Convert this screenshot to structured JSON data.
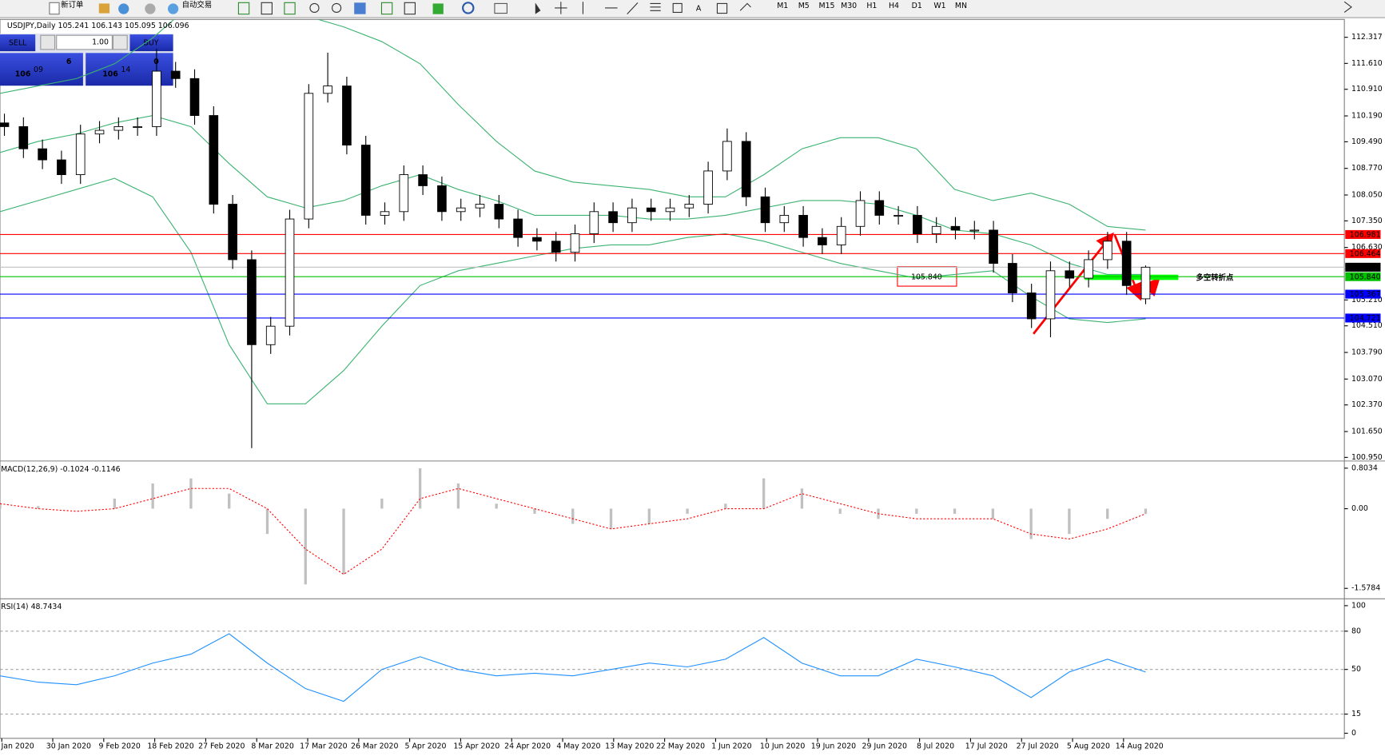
{
  "toolbar": {
    "new_order": "新订单",
    "auto_trading": "自动交易",
    "timeframes": [
      "M1",
      "M5",
      "M15",
      "M30",
      "H1",
      "H4",
      "D1",
      "W1",
      "MN"
    ]
  },
  "trade_panel": {
    "sell": "SELL",
    "buy": "BUY",
    "lots": "1.00",
    "bid": {
      "big": "106",
      "main": "09",
      "small": "6"
    },
    "ask": {
      "big": "106",
      "main": "14",
      "small": "0"
    }
  },
  "chart_data": [
    {
      "type": "candlestick",
      "title": "USDJPY,Daily",
      "header_values": [
        105.241,
        106.143,
        105.095,
        106.096
      ],
      "ylim": [
        100.9,
        112.8
      ],
      "yticks": [
        {
          "value": 112.317,
          "label": "112.317"
        },
        {
          "value": 111.61,
          "label": "111.610"
        },
        {
          "value": 110.91,
          "label": "110.910"
        },
        {
          "value": 110.19,
          "label": "110.190"
        },
        {
          "value": 109.49,
          "label": "109.490"
        },
        {
          "value": 108.77,
          "label": "108.770"
        },
        {
          "value": 108.05,
          "label": "108.050"
        },
        {
          "value": 107.35,
          "label": "107.350"
        },
        {
          "value": 106.63,
          "label": "106.630"
        },
        {
          "value": 105.21,
          "label": "105.210"
        },
        {
          "value": 104.51,
          "label": "104.510"
        },
        {
          "value": 103.79,
          "label": "103.790"
        },
        {
          "value": 103.07,
          "label": "103.070"
        },
        {
          "value": 102.37,
          "label": "102.370"
        },
        {
          "value": 101.65,
          "label": "101.650"
        },
        {
          "value": 100.95,
          "label": "100.950"
        }
      ],
      "price_levels": [
        {
          "value": 106.981,
          "label": "106.981",
          "color": "#ff0000"
        },
        {
          "value": 106.464,
          "label": "106.464",
          "color": "#ff0000"
        },
        {
          "value": 106.096,
          "label": "106.096",
          "color": "#c0c0c0",
          "label_bg": "#000000"
        },
        {
          "value": 105.84,
          "label": "105.840",
          "color": "#00c000"
        },
        {
          "value": 105.367,
          "label": "105.367",
          "color": "#0000ff"
        },
        {
          "value": 104.721,
          "label": "104.721",
          "color": "#0000ff"
        }
      ],
      "candles": [
        [
          110.0,
          110.25,
          109.65,
          109.9
        ],
        [
          109.9,
          110.15,
          109.05,
          109.3
        ],
        [
          109.3,
          109.55,
          108.75,
          109.0
        ],
        [
          109.0,
          109.25,
          108.35,
          108.6
        ],
        [
          108.6,
          109.95,
          108.35,
          109.7
        ],
        [
          109.7,
          110.05,
          109.45,
          109.8
        ],
        [
          109.8,
          110.15,
          109.55,
          109.9
        ],
        [
          109.9,
          110.15,
          109.65,
          109.9
        ],
        [
          109.9,
          112.0,
          109.65,
          111.4
        ],
        [
          111.4,
          111.65,
          110.95,
          111.2
        ],
        [
          111.2,
          111.45,
          109.95,
          110.2
        ],
        [
          110.2,
          110.45,
          107.55,
          107.8
        ],
        [
          107.8,
          108.05,
          106.05,
          106.3
        ],
        [
          106.3,
          106.55,
          101.2,
          104.0
        ],
        [
          104.0,
          104.75,
          103.75,
          104.5
        ],
        [
          104.5,
          107.65,
          104.25,
          107.4
        ],
        [
          107.4,
          111.05,
          107.15,
          110.8
        ],
        [
          110.8,
          111.9,
          110.55,
          111.0
        ],
        [
          111.0,
          111.25,
          109.15,
          109.4
        ],
        [
          109.4,
          109.65,
          107.25,
          107.5
        ],
        [
          107.5,
          107.85,
          107.25,
          107.6
        ],
        [
          107.6,
          108.85,
          107.35,
          108.6
        ],
        [
          108.6,
          108.85,
          108.05,
          108.3
        ],
        [
          108.3,
          108.55,
          107.35,
          107.6
        ],
        [
          107.6,
          107.95,
          107.35,
          107.7
        ],
        [
          107.7,
          108.05,
          107.45,
          107.8
        ],
        [
          107.8,
          108.05,
          107.15,
          107.4
        ],
        [
          107.4,
          107.65,
          106.65,
          106.9
        ],
        [
          106.9,
          107.15,
          106.55,
          106.8
        ],
        [
          106.8,
          107.05,
          106.25,
          106.5
        ],
        [
          106.5,
          107.25,
          106.25,
          107.0
        ],
        [
          107.0,
          107.85,
          106.75,
          107.6
        ],
        [
          107.6,
          107.85,
          107.05,
          107.3
        ],
        [
          107.3,
          107.95,
          107.05,
          107.7
        ],
        [
          107.7,
          107.95,
          107.35,
          107.6
        ],
        [
          107.6,
          107.95,
          107.35,
          107.7
        ],
        [
          107.7,
          108.05,
          107.45,
          107.8
        ],
        [
          107.8,
          108.95,
          107.55,
          108.7
        ],
        [
          108.7,
          109.85,
          108.45,
          109.5
        ],
        [
          109.5,
          109.75,
          107.75,
          108.0
        ],
        [
          108.0,
          108.25,
          107.05,
          107.3
        ],
        [
          107.3,
          107.75,
          107.05,
          107.5
        ],
        [
          107.5,
          107.75,
          106.65,
          106.9
        ],
        [
          106.9,
          107.15,
          106.45,
          106.7
        ],
        [
          106.7,
          107.45,
          106.45,
          107.2
        ],
        [
          107.2,
          108.15,
          106.95,
          107.9
        ],
        [
          107.9,
          108.15,
          107.25,
          107.5
        ],
        [
          107.5,
          107.75,
          107.25,
          107.5
        ],
        [
          107.5,
          107.75,
          106.75,
          107.0
        ],
        [
          107.0,
          107.45,
          106.75,
          107.2
        ],
        [
          107.2,
          107.45,
          106.85,
          107.1
        ],
        [
          107.1,
          107.35,
          106.85,
          107.1
        ],
        [
          107.1,
          107.35,
          105.95,
          106.2
        ],
        [
          106.2,
          106.45,
          105.15,
          105.4
        ],
        [
          105.4,
          105.65,
          104.45,
          104.7
        ],
        [
          104.7,
          106.25,
          104.2,
          106.0
        ],
        [
          106.0,
          106.25,
          105.55,
          105.8
        ],
        [
          105.8,
          106.55,
          105.55,
          106.3
        ],
        [
          106.3,
          107.05,
          106.05,
          106.8
        ],
        [
          106.8,
          107.05,
          105.35,
          105.6
        ],
        [
          105.241,
          106.143,
          105.095,
          106.096
        ]
      ],
      "bands": {
        "color": "#3cb371",
        "upper": [
          110.8,
          111.0,
          111.2,
          111.6,
          112.3,
          113.2,
          113.8,
          113.5,
          112.9,
          112.6,
          112.2,
          111.6,
          110.5,
          109.5,
          108.7,
          108.4,
          108.3,
          108.2,
          108.0,
          108.0,
          108.6,
          109.3,
          109.6,
          109.6,
          109.3,
          108.2,
          107.9,
          108.1,
          107.8,
          107.2,
          107.1
        ],
        "middle": [
          109.2,
          109.5,
          109.7,
          110.0,
          110.2,
          109.9,
          108.9,
          108.0,
          107.7,
          107.9,
          108.3,
          108.6,
          108.2,
          107.9,
          107.5,
          107.5,
          107.5,
          107.4,
          107.4,
          107.5,
          107.7,
          107.9,
          107.9,
          107.8,
          107.5,
          107.1,
          107.0,
          106.7,
          106.2,
          105.9,
          105.9
        ],
        "lower": [
          107.6,
          107.9,
          108.2,
          108.5,
          108.0,
          106.5,
          104.0,
          102.4,
          102.4,
          103.3,
          104.5,
          105.6,
          106.0,
          106.2,
          106.4,
          106.6,
          106.7,
          106.7,
          106.9,
          107.0,
          106.8,
          106.5,
          106.2,
          106.0,
          105.8,
          105.9,
          106.0,
          105.3,
          104.7,
          104.6,
          104.7
        ]
      },
      "annotations": {
        "box": "105.840",
        "note": "多空转折点"
      }
    },
    {
      "type": "macd",
      "title": "MACD(12,26,9)",
      "header_values": [
        -0.1024,
        -0.1146
      ],
      "ylim": [
        -1.75,
        0.91
      ],
      "yticks": [
        0.8034,
        {
          "value": 0,
          "label": "0.00"
        },
        -1.5784
      ],
      "histogram": [
        0.1,
        0.05,
        0.0,
        0.2,
        0.5,
        0.6,
        0.3,
        -0.5,
        -1.5,
        -1.3,
        0.2,
        0.8,
        0.5,
        0.1,
        -0.1,
        -0.3,
        -0.4,
        -0.3,
        -0.1,
        0.1,
        0.6,
        0.4,
        -0.1,
        -0.2,
        -0.1,
        -0.1,
        -0.2,
        -0.6,
        -0.5,
        -0.2,
        -0.1
      ],
      "signal": [
        0.1,
        0.0,
        -0.05,
        0.0,
        0.2,
        0.4,
        0.4,
        0.0,
        -0.8,
        -1.3,
        -0.8,
        0.2,
        0.4,
        0.2,
        0.0,
        -0.2,
        -0.4,
        -0.3,
        -0.2,
        0.0,
        0.0,
        0.3,
        0.1,
        -0.1,
        -0.2,
        -0.2,
        -0.2,
        -0.5,
        -0.6,
        -0.4,
        -0.1
      ],
      "histogram_color": "#c0c0c0",
      "signal_color": "#ff0000"
    },
    {
      "type": "rsi",
      "title": "RSI(14)",
      "header_values": [
        48.7434
      ],
      "ylim": [
        -4,
        104
      ],
      "yticks": [
        100,
        80,
        50,
        15,
        0
      ],
      "values": [
        45,
        40,
        38,
        45,
        55,
        62,
        78,
        55,
        35,
        25,
        50,
        60,
        50,
        45,
        47,
        45,
        50,
        55,
        52,
        58,
        75,
        55,
        45,
        45,
        58,
        52,
        45,
        28,
        48,
        58,
        48
      ],
      "color": "#1e90ff"
    }
  ],
  "date_labels": [
    "Jan 2020",
    "30 Jan 2020",
    "9 Feb 2020",
    "18 Feb 2020",
    "27 Feb 2020",
    "8 Mar 2020",
    "17 Mar 2020",
    "26 Mar 2020",
    "5 Apr 2020",
    "15 Apr 2020",
    "24 Apr 2020",
    "4 May 2020",
    "13 May 2020",
    "22 May 2020",
    "1 Jun 2020",
    "10 Jun 2020",
    "19 Jun 2020",
    "29 Jun 2020",
    "8 Jul 2020",
    "17 Jul 2020",
    "27 Jul 2020",
    "5 Aug 2020",
    "14 Aug 2020"
  ]
}
